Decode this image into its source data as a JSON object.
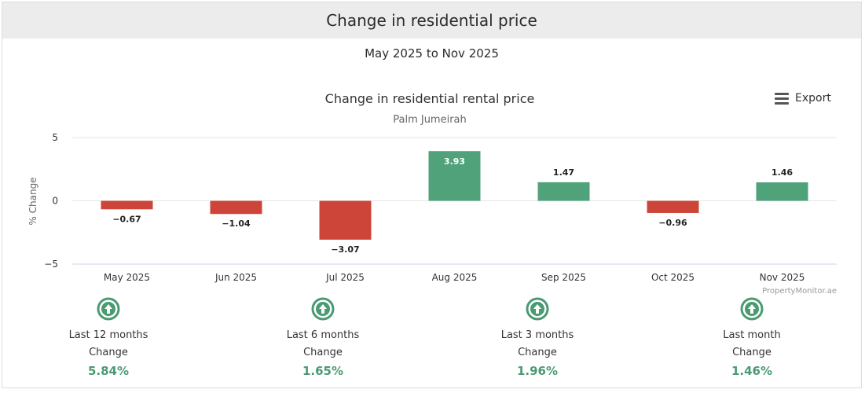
{
  "header": {
    "title": "Change in residential price"
  },
  "period": "May 2025 to Nov 2025",
  "export": {
    "label": "Export",
    "icon": "menu-icon"
  },
  "chart_data": {
    "type": "bar",
    "title": "Change in residential rental price",
    "subtitle": "Palm Jumeirah",
    "ylabel": "% Change",
    "xlabel": "",
    "ylim": [
      -5,
      5
    ],
    "yticks": [
      5,
      0,
      -5
    ],
    "grid": true,
    "categories": [
      "May 2025",
      "Jun 2025",
      "Jul 2025",
      "Aug 2025",
      "Sep 2025",
      "Oct 2025",
      "Nov 2025"
    ],
    "values": [
      -0.67,
      -1.04,
      -3.07,
      3.93,
      1.47,
      -0.96,
      1.46
    ],
    "labels": [
      "−0.67",
      "−1.04",
      "−3.07",
      "3.93",
      "1.47",
      "−0.96",
      "1.46"
    ],
    "colors": {
      "positive": "#4fa27a",
      "negative": "#cc4538"
    },
    "credit": "PropertyMonitor.ae"
  },
  "stats": [
    {
      "period": "Last 12 months",
      "label": "Change",
      "value": "5.84%",
      "icon": "arrow-up-circle-icon"
    },
    {
      "period": "Last 6 months",
      "label": "Change",
      "value": "1.65%",
      "icon": "arrow-up-circle-icon"
    },
    {
      "period": "Last 3 months",
      "label": "Change",
      "value": "1.96%",
      "icon": "arrow-up-circle-icon"
    },
    {
      "period": "Last month",
      "label": "Change",
      "value": "1.46%",
      "icon": "arrow-up-circle-icon"
    }
  ],
  "accent": "#4a9a72"
}
